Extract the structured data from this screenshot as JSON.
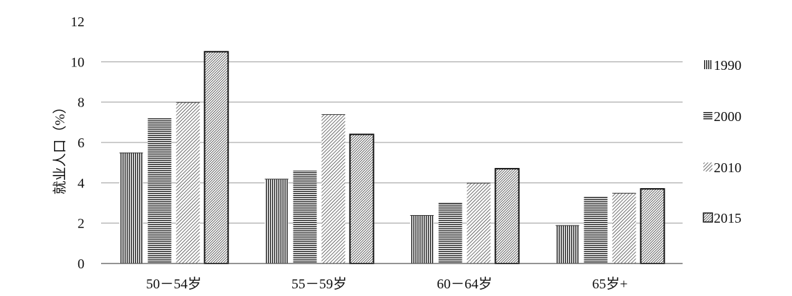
{
  "chart_data": {
    "type": "bar",
    "ylabel": "就业人口（%）",
    "ylim": [
      0,
      12
    ],
    "yticks": [
      0,
      2,
      4,
      6,
      8,
      10,
      12
    ],
    "grid": true,
    "legend_position": "right",
    "categories": [
      "50－54岁",
      "55－59岁",
      "60－64岁",
      "65岁+"
    ],
    "series": [
      {
        "name": "1990",
        "values": [
          5.5,
          4.2,
          2.4,
          1.9
        ],
        "pattern": "vertical-lines"
      },
      {
        "name": "2000",
        "values": [
          7.2,
          4.6,
          3.0,
          3.3
        ],
        "pattern": "horizontal-lines"
      },
      {
        "name": "2010",
        "values": [
          8.0,
          7.4,
          4.0,
          3.5
        ],
        "pattern": "diagonal-lines"
      },
      {
        "name": "2015",
        "values": [
          10.5,
          6.4,
          4.7,
          3.7
        ],
        "pattern": "dense-diagonal-bordered"
      }
    ],
    "colors": {
      "ink": "#111111",
      "grid": "#9a9a9a",
      "axis": "#555555"
    }
  }
}
